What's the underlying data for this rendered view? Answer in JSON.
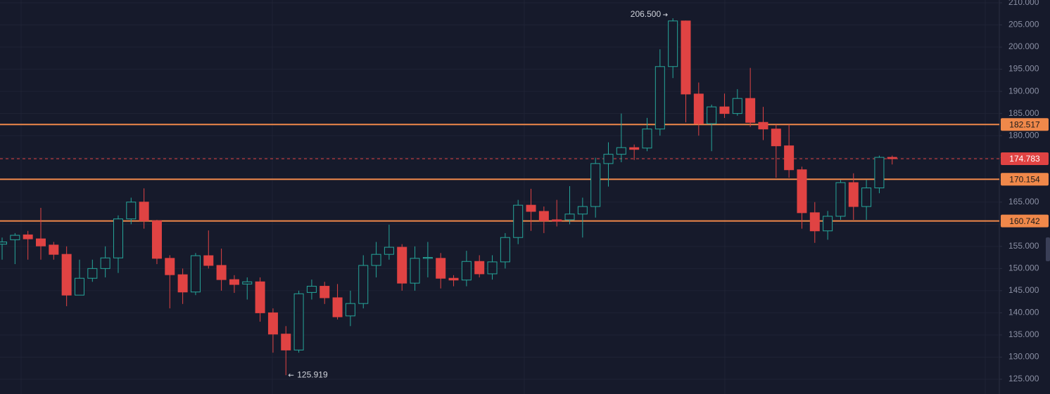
{
  "chart_data": {
    "type": "candlestick",
    "up_color": "#26a69a",
    "down_color": "#e04343",
    "open": [
      155.5,
      156.5,
      157.6,
      156.7,
      155.3,
      153.2,
      144,
      147.8,
      150,
      152.4,
      161.2,
      165,
      160.8,
      152.3,
      148.6,
      144.7,
      152.9,
      150.7,
      147.5,
      146.5,
      147,
      140,
      135.2,
      131.6,
      144.6,
      146,
      143.4,
      139.3,
      142.1,
      150.7,
      153.2,
      154.8,
      146.7,
      152.3,
      152.3,
      147.8,
      147.4,
      151.6,
      148.8,
      151.5,
      157,
      164.3,
      162.9,
      161,
      161,
      162.3,
      164,
      173.7,
      175.8,
      177.3,
      177.2,
      181.5,
      195.6,
      205.9,
      189.4,
      182.7,
      186.5,
      185,
      188.4,
      183,
      181.5,
      177.7,
      172.3,
      162.6,
      158.5,
      161.8,
      169.4,
      164,
      168.2,
      175.1
    ],
    "high": [
      157,
      158,
      158.5,
      163.7,
      156,
      155,
      152,
      152,
      155,
      162,
      166,
      168.1,
      161,
      153,
      150,
      153.5,
      158.6,
      154.5,
      148.5,
      148,
      148,
      141,
      137,
      145,
      147.5,
      147,
      146.5,
      145,
      153,
      156,
      159.9,
      155.5,
      155,
      156,
      153.5,
      148.5,
      154,
      153,
      153,
      158,
      165.5,
      168,
      164,
      165.5,
      168.6,
      166,
      175,
      178.5,
      185,
      178,
      184,
      199.5,
      206.5,
      206,
      192,
      187,
      189.5,
      190.5,
      195.3,
      186.5,
      182.5,
      182.5,
      173,
      165,
      163,
      170,
      171.5,
      170,
      175.5,
      175.5
    ],
    "low": [
      152,
      151,
      152,
      152,
      152,
      141.5,
      144,
      147,
      148,
      149,
      160,
      159,
      151,
      141,
      142,
      144,
      150,
      145,
      144.5,
      143,
      138,
      131,
      125.919,
      131,
      143,
      142,
      138.5,
      137,
      141,
      148,
      152,
      145,
      145,
      148,
      145.5,
      146,
      146,
      148,
      147.5,
      150,
      155.5,
      158.5,
      158,
      159.5,
      160,
      157,
      161.5,
      168.5,
      174,
      174.5,
      176.5,
      180,
      193,
      183,
      180,
      176.5,
      184,
      184.5,
      182,
      179,
      170.5,
      170.5,
      159,
      155.8,
      156.5,
      161,
      161,
      161,
      167,
      173.5
    ],
    "close": [
      156,
      157.5,
      156.7,
      155.1,
      153.2,
      144,
      147.8,
      150,
      152.4,
      161.2,
      165,
      160.8,
      152.3,
      148.6,
      144.7,
      152.9,
      150.7,
      147.5,
      146.4,
      147,
      140,
      135.2,
      131.6,
      144.3,
      146,
      143.4,
      139.1,
      142.1,
      150.7,
      153.2,
      154.8,
      146.7,
      152.3,
      152.5,
      147.8,
      147.4,
      151.6,
      148.8,
      151.5,
      157,
      164.3,
      162.9,
      160.8,
      160.7,
      162.3,
      164,
      173.7,
      175.8,
      177.3,
      176.9,
      181.5,
      195.6,
      205.9,
      189.4,
      182.7,
      186.5,
      185,
      188.4,
      183,
      181.5,
      177.7,
      172.3,
      162.6,
      158.5,
      161.8,
      169.4,
      164,
      168.2,
      175.1,
      174.8
    ],
    "ylim": [
      121.67,
      210.63
    ],
    "yticks": [
      {
        "value": 125,
        "label": "125.000"
      },
      {
        "value": 130,
        "label": "130.000"
      },
      {
        "value": 135,
        "label": "135.000"
      },
      {
        "value": 140,
        "label": "140.000"
      },
      {
        "value": 145,
        "label": "145.000"
      },
      {
        "value": 150,
        "label": "150.000"
      },
      {
        "value": 155,
        "label": "155.000"
      },
      {
        "value": 160,
        "label": "160.000"
      },
      {
        "value": 165,
        "label": "165.000"
      },
      {
        "value": 170,
        "label": "170.000"
      },
      {
        "value": 175,
        "label": "175.000"
      },
      {
        "value": 180,
        "label": "180.000"
      },
      {
        "value": 185,
        "label": "185.000"
      },
      {
        "value": 190,
        "label": "190.000"
      },
      {
        "value": 195,
        "label": "195.000"
      },
      {
        "value": 200,
        "label": "200.000"
      },
      {
        "value": 205,
        "label": "205.000"
      },
      {
        "value": 210,
        "label": "210.000"
      }
    ],
    "grid": true,
    "levels": [
      {
        "value": 182.517,
        "color": "#f0884a"
      },
      {
        "value": 170.154,
        "color": "#f0884a"
      },
      {
        "value": 160.742,
        "color": "#f0884a"
      }
    ],
    "last_price": {
      "value": 174.783,
      "color": "#e04343"
    },
    "high_marker": {
      "value": 206.5,
      "label": "206.500"
    },
    "low_marker": 125.919
  }
}
